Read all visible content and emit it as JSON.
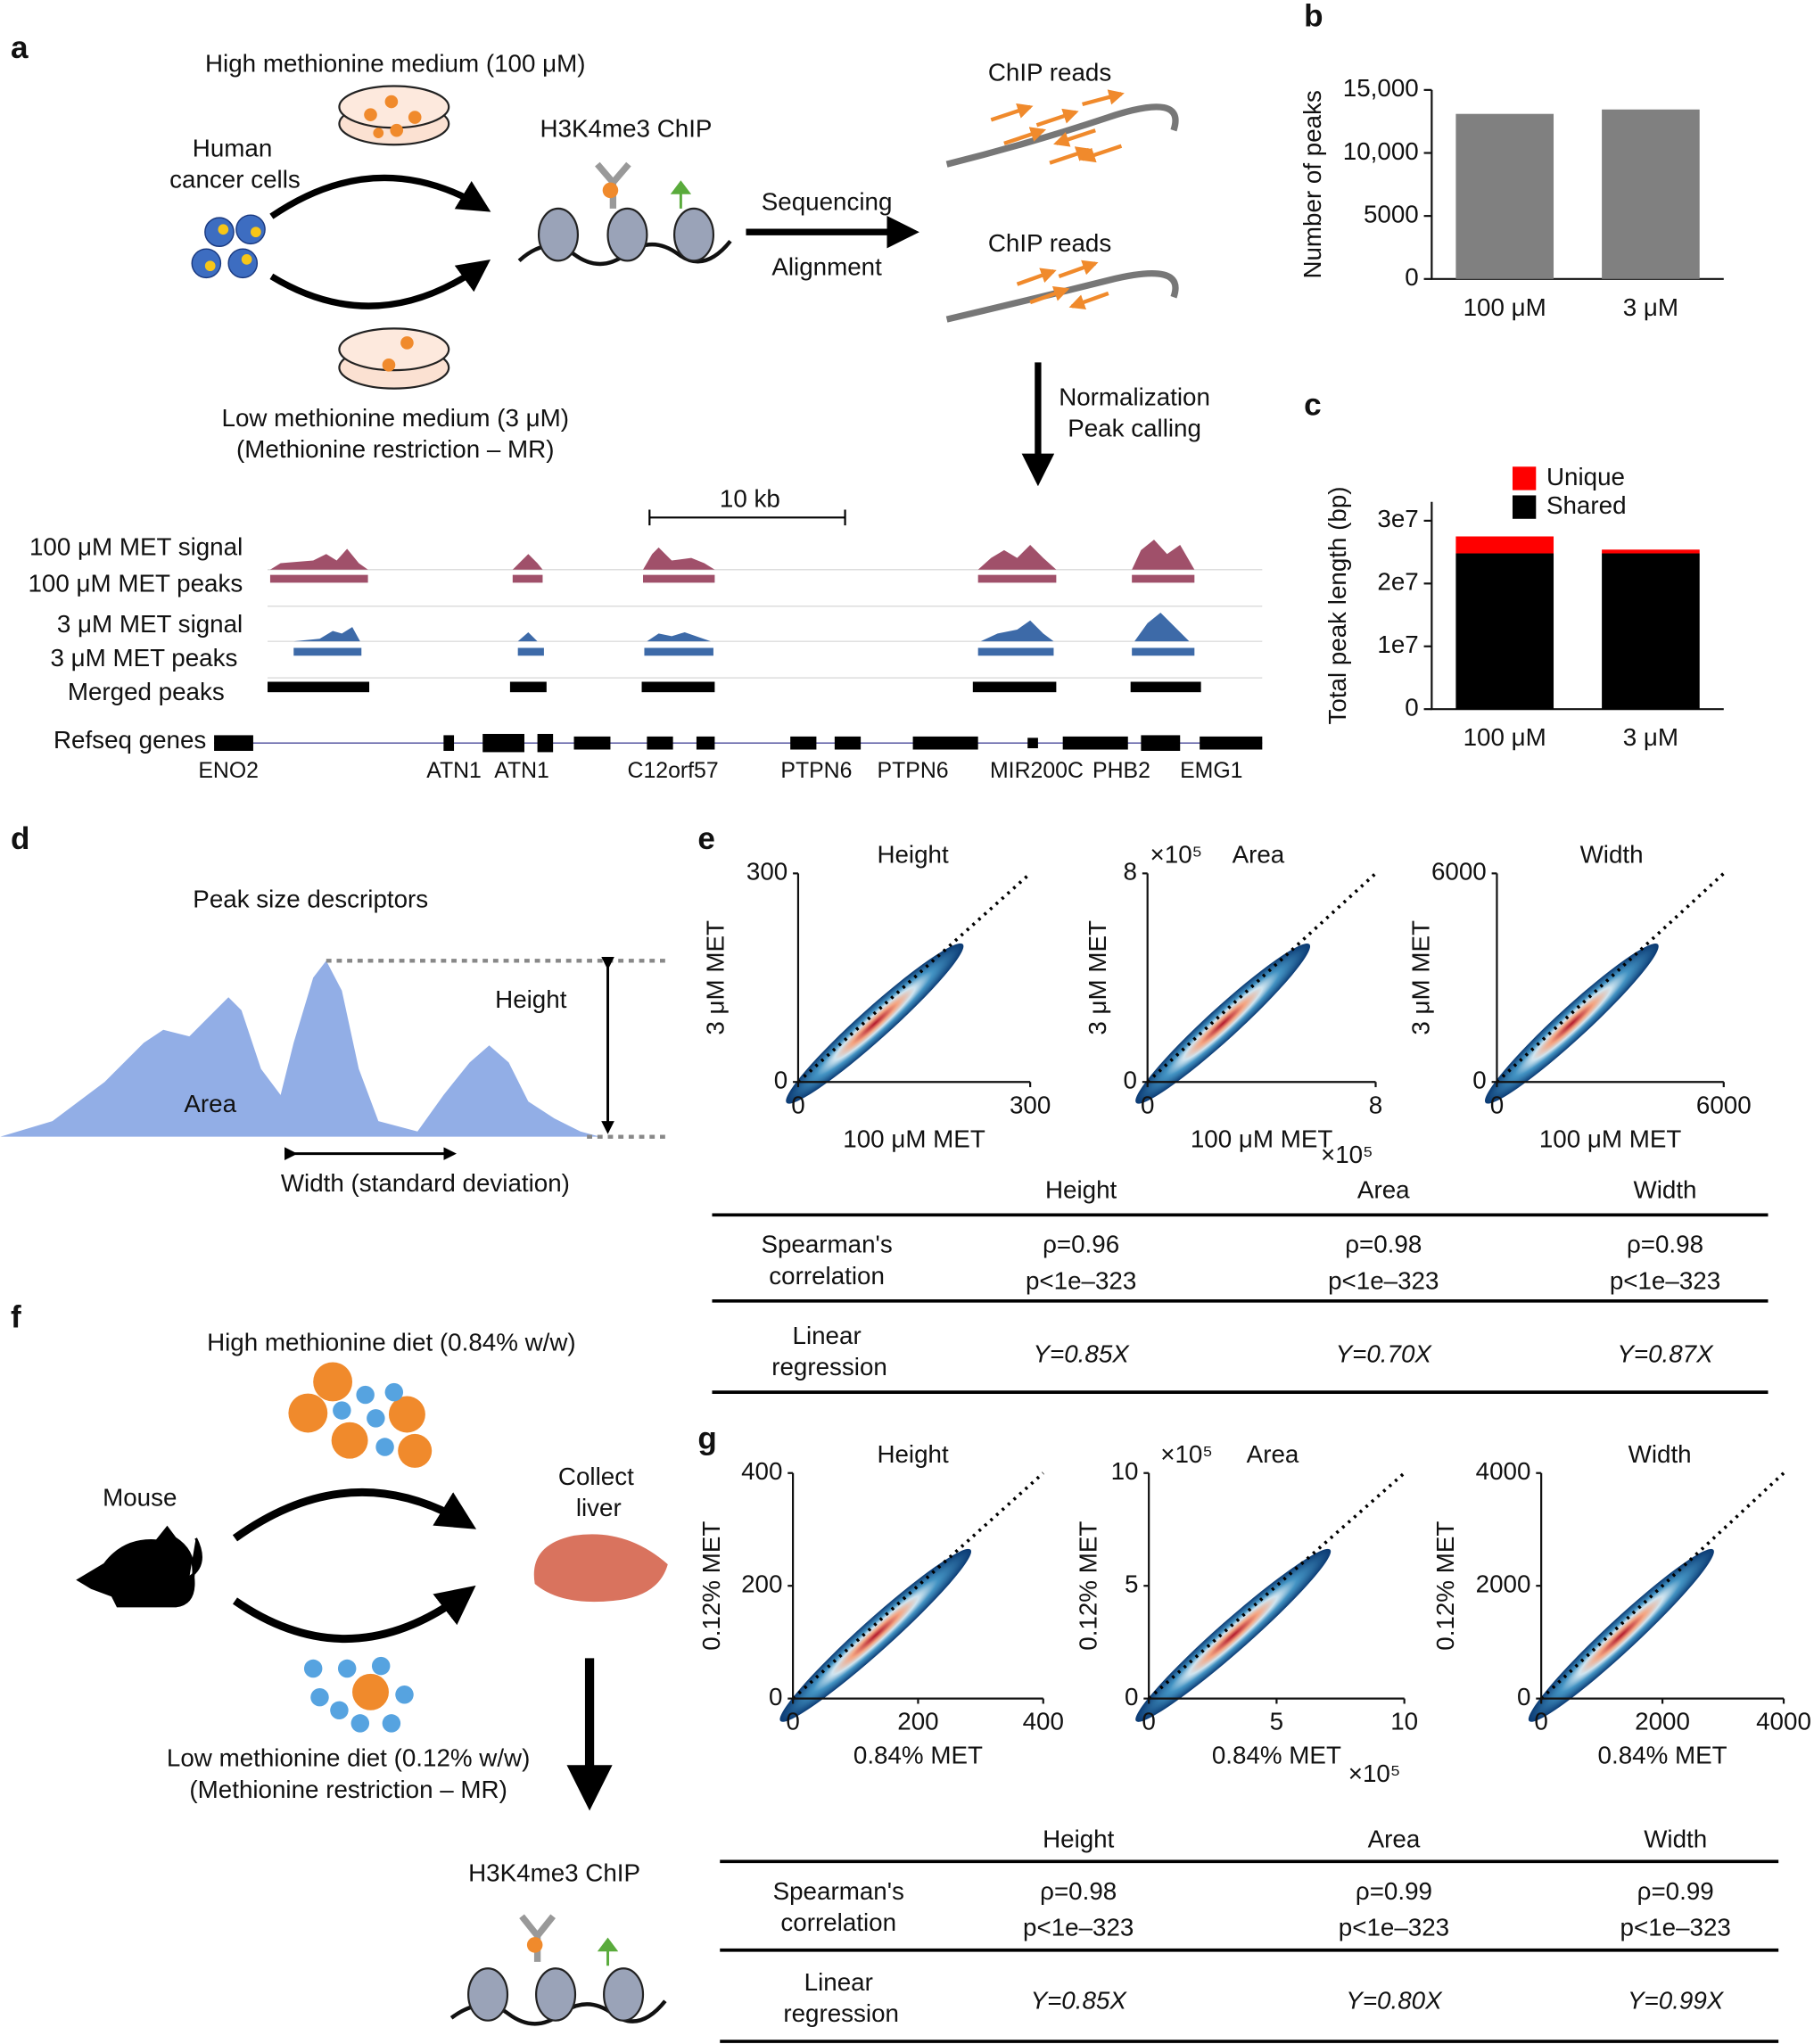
{
  "figure": {
    "panel_labels": [
      "a",
      "b",
      "c",
      "d",
      "e",
      "f",
      "g"
    ],
    "a": {
      "high_medium": "High methionine medium (100 μM)",
      "cells": [
        "Human",
        "cancer cells"
      ],
      "chip": "H3K4me3 ChIP",
      "steps": [
        "Sequencing",
        "Alignment"
      ],
      "reads": [
        "ChIP reads",
        "ChIP reads"
      ],
      "low_medium": [
        "Low methionine medium (3 μM)",
        "(Methionine restriction – MR)"
      ],
      "post": [
        "Normalization",
        "Peak calling"
      ],
      "scale_bar": "10 kb",
      "tracks": [
        "100 μM MET signal",
        "100 μM MET peaks",
        "3 μM MET signal",
        "3 μM MET peaks",
        "Merged peaks",
        "Refseq genes"
      ],
      "genes": [
        "ENO2",
        "ATN1",
        "ATN1",
        "C12orf57",
        "PTPN6",
        "PTPN6",
        "MIR200C",
        "PHB2",
        "EMG1"
      ]
    },
    "d": {
      "title": "Peak size descriptors",
      "height": "Height",
      "area": "Area",
      "width": "Width (standard deviation)"
    },
    "f": {
      "high_diet": "High methionine diet (0.84% w/w)",
      "mouse": "Mouse",
      "collect": [
        "Collect",
        "liver"
      ],
      "low_diet": [
        "Low methionine diet (0.12% w/w)",
        "(Methionine restriction – MR)"
      ],
      "chip": "H3K4me3 ChIP"
    },
    "e_table": {
      "columns": [
        "Height",
        "Area",
        "Width"
      ],
      "rows": [
        {
          "label": [
            "Spearman's",
            "correlation"
          ],
          "cells": [
            [
              "ρ=0.96",
              "p<1e–323"
            ],
            [
              "ρ=0.98",
              "p<1e–323"
            ],
            [
              "ρ=0.98",
              "p<1e–323"
            ]
          ]
        },
        {
          "label": [
            "Linear",
            "regression"
          ],
          "cells": [
            "Y=0.85X",
            "Y=0.70X",
            "Y=0.87X"
          ]
        }
      ]
    },
    "g_table": {
      "columns": [
        "Height",
        "Area",
        "Width"
      ],
      "rows": [
        {
          "label": [
            "Spearman's",
            "correlation"
          ],
          "cells": [
            [
              "ρ=0.98",
              "p<1e–323"
            ],
            [
              "ρ=0.99",
              "p<1e–323"
            ],
            [
              "ρ=0.99",
              "p<1e–323"
            ]
          ]
        },
        {
          "label": [
            "Linear",
            "regression"
          ],
          "cells": [
            "Y=0.85X",
            "Y=0.80X",
            "Y=0.99X"
          ]
        }
      ]
    }
  },
  "chart_data": [
    {
      "type": "bar",
      "ylabel": "Number of peaks",
      "categories": [
        "100 μM",
        "3 μM"
      ],
      "values": [
        13100,
        13450
      ],
      "color": "#808080",
      "ylim": [
        0,
        15000
      ],
      "yticks": [
        0,
        5000,
        {
          "value": 10000,
          "label": "10,000"
        },
        {
          "value": 15000,
          "label": "15,000"
        }
      ]
    },
    {
      "type": "stacked_bar",
      "ylabel": "Total peak length (bp)",
      "categories": [
        "100 μM",
        "3 μM"
      ],
      "series": [
        {
          "name": "Shared",
          "color": "#000000",
          "values": [
            24800000,
            24800000
          ]
        },
        {
          "name": "Unique",
          "color": "#ff0000",
          "values": [
            2700000,
            600000
          ]
        }
      ],
      "ylim": [
        0,
        33000000
      ],
      "yticks": [
        0,
        {
          "value": 10000000,
          "label": "1e7"
        },
        {
          "value": 20000000,
          "label": "2e7"
        },
        {
          "value": 30000000,
          "label": "3e7"
        }
      ]
    },
    {
      "type": "scatter",
      "title": "Height",
      "xlabel": "100 μM MET",
      "ylabel": "3 μM MET",
      "xlim": [
        0,
        300
      ],
      "ylim": [
        0,
        300
      ],
      "xticks": [
        0,
        300
      ],
      "yticks": [
        0,
        300
      ]
    },
    {
      "type": "scatter",
      "title": "Area",
      "xlabel": "100 μM MET",
      "ylabel": "3 μM MET",
      "x_multiplier": "×10⁵",
      "y_multiplier": "×10⁵",
      "xlim": [
        0,
        8
      ],
      "ylim": [
        0,
        8
      ],
      "xticks": [
        0,
        8
      ],
      "yticks": [
        0,
        8
      ]
    },
    {
      "type": "scatter",
      "title": "Width",
      "xlabel": "100 μM MET",
      "ylabel": "3 μM MET",
      "xlim": [
        0,
        6000
      ],
      "ylim": [
        0,
        6000
      ],
      "xticks": [
        0,
        6000
      ],
      "yticks": [
        0,
        6000
      ]
    },
    {
      "type": "scatter",
      "title": "Height",
      "xlabel": "0.84% MET",
      "ylabel": "0.12% MET",
      "xlim": [
        0,
        400
      ],
      "ylim": [
        0,
        400
      ],
      "xticks": [
        0,
        200,
        400
      ],
      "yticks": [
        0,
        200,
        400
      ]
    },
    {
      "type": "scatter",
      "title": "Area",
      "xlabel": "0.84% MET",
      "ylabel": "0.12% MET",
      "x_multiplier": "×10⁵",
      "y_multiplier": "×10⁵",
      "xlim": [
        0,
        10
      ],
      "ylim": [
        0,
        10
      ],
      "xticks": [
        0,
        5,
        10
      ],
      "yticks": [
        0,
        5,
        10
      ]
    },
    {
      "type": "scatter",
      "title": "Width",
      "xlabel": "0.84% MET",
      "ylabel": "0.12% MET",
      "xlim": [
        0,
        4000
      ],
      "ylim": [
        0,
        4000
      ],
      "xticks": [
        0,
        2000,
        4000
      ],
      "yticks": [
        0,
        2000,
        4000
      ]
    }
  ]
}
